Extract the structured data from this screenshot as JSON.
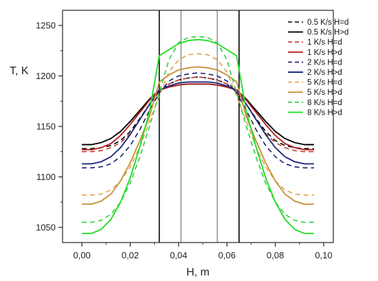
{
  "chart_data": {
    "type": "line",
    "xlabel": "H, m",
    "ylabel": "T, K",
    "xlim": [
      -0.008,
      0.104
    ],
    "ylim": [
      1035,
      1265
    ],
    "xticks": [
      0.0,
      0.02,
      0.04,
      0.06,
      0.08,
      0.1
    ],
    "xtick_labels": [
      "0,00",
      "0,02",
      "0,04",
      "0,06",
      "0,08",
      "0,10"
    ],
    "yticks": [
      1050,
      1100,
      1150,
      1200,
      1250
    ],
    "ytick_labels": [
      "1050",
      "1100",
      "1150",
      "1200",
      "1250"
    ],
    "grid": false,
    "legend_position": "top-right",
    "vertical_lines": [
      {
        "x": 0.032,
        "color": "#000000"
      },
      {
        "x": 0.041,
        "color": "#808080"
      },
      {
        "x": 0.056,
        "color": "#808080"
      },
      {
        "x": 0.065,
        "color": "#000000"
      }
    ],
    "series": [
      {
        "name": "0.5 K/s H=d",
        "color": "#000000",
        "dash": true,
        "x": [
          0.0,
          0.004,
          0.008,
          0.012,
          0.016,
          0.02,
          0.024,
          0.028,
          0.032,
          0.036,
          0.04,
          0.044,
          0.048,
          0.052,
          0.056,
          0.06,
          0.064,
          0.068,
          0.072,
          0.076,
          0.08,
          0.084,
          0.088,
          0.092,
          0.096
        ],
        "y": [
          1128,
          1128,
          1129,
          1131,
          1136,
          1145,
          1158,
          1172,
          1184,
          1192,
          1196,
          1198,
          1199,
          1198,
          1196,
          1192,
          1184,
          1172,
          1158,
          1145,
          1136,
          1131,
          1129,
          1128,
          1128
        ]
      },
      {
        "name": "0.5 K/s H>d",
        "color": "#000000",
        "dash": false,
        "x": [
          0.0,
          0.004,
          0.008,
          0.012,
          0.016,
          0.02,
          0.024,
          0.028,
          0.032,
          0.036,
          0.04,
          0.044,
          0.048,
          0.052,
          0.056,
          0.06,
          0.064,
          0.068,
          0.072,
          0.076,
          0.08,
          0.084,
          0.088,
          0.092,
          0.096
        ],
        "y": [
          1132,
          1132,
          1134,
          1138,
          1145,
          1155,
          1166,
          1177,
          1186,
          1189,
          1191,
          1192,
          1192,
          1192,
          1191,
          1189,
          1186,
          1177,
          1166,
          1155,
          1145,
          1138,
          1134,
          1132,
          1132
        ]
      },
      {
        "name": "1 K/s H=d",
        "color": "#c0392b",
        "dash": true,
        "x": [
          0.0,
          0.004,
          0.008,
          0.012,
          0.016,
          0.02,
          0.024,
          0.028,
          0.032,
          0.036,
          0.04,
          0.044,
          0.048,
          0.052,
          0.056,
          0.06,
          0.064,
          0.068,
          0.072,
          0.076,
          0.08,
          0.084,
          0.088,
          0.092,
          0.096
        ],
        "y": [
          1125,
          1125,
          1126,
          1129,
          1134,
          1143,
          1157,
          1172,
          1184,
          1192,
          1196,
          1198,
          1199,
          1198,
          1196,
          1192,
          1184,
          1172,
          1157,
          1143,
          1134,
          1129,
          1126,
          1125,
          1125
        ]
      },
      {
        "name": "1 K/s H>d",
        "color": "#b22222",
        "dash": false,
        "x": [
          0.0,
          0.004,
          0.008,
          0.012,
          0.016,
          0.02,
          0.024,
          0.028,
          0.032,
          0.036,
          0.04,
          0.044,
          0.048,
          0.052,
          0.056,
          0.06,
          0.064,
          0.068,
          0.072,
          0.076,
          0.08,
          0.084,
          0.088,
          0.092,
          0.096
        ],
        "y": [
          1127,
          1127,
          1129,
          1133,
          1141,
          1152,
          1164,
          1176,
          1186,
          1189,
          1191,
          1192,
          1192,
          1192,
          1191,
          1189,
          1186,
          1176,
          1164,
          1152,
          1141,
          1133,
          1129,
          1127,
          1127
        ]
      },
      {
        "name": "2 K/s H=d",
        "color": "#1a1a6e",
        "dash": true,
        "x": [
          0.0,
          0.004,
          0.008,
          0.012,
          0.016,
          0.02,
          0.024,
          0.028,
          0.032,
          0.036,
          0.04,
          0.044,
          0.048,
          0.052,
          0.056,
          0.06,
          0.064,
          0.068,
          0.072,
          0.076,
          0.08,
          0.084,
          0.088,
          0.092,
          0.096
        ],
        "y": [
          1109,
          1109,
          1110,
          1113,
          1120,
          1131,
          1147,
          1166,
          1183,
          1195,
          1200,
          1202,
          1203,
          1202,
          1200,
          1195,
          1183,
          1166,
          1147,
          1131,
          1120,
          1113,
          1110,
          1109,
          1109
        ]
      },
      {
        "name": "2 K/s H>d",
        "color": "#1f2a80",
        "dash": false,
        "x": [
          0.0,
          0.004,
          0.008,
          0.012,
          0.016,
          0.02,
          0.024,
          0.028,
          0.032,
          0.036,
          0.04,
          0.044,
          0.048,
          0.052,
          0.056,
          0.06,
          0.064,
          0.068,
          0.072,
          0.076,
          0.08,
          0.084,
          0.088,
          0.092,
          0.096
        ],
        "y": [
          1113,
          1113,
          1115,
          1120,
          1129,
          1142,
          1157,
          1172,
          1186,
          1190,
          1193,
          1194,
          1194,
          1194,
          1193,
          1190,
          1186,
          1172,
          1157,
          1142,
          1129,
          1120,
          1115,
          1113,
          1113
        ]
      },
      {
        "name": "5 K/s H=d",
        "color": "#e0a050",
        "dash": true,
        "x": [
          0.0,
          0.004,
          0.008,
          0.012,
          0.016,
          0.02,
          0.024,
          0.028,
          0.032,
          0.036,
          0.04,
          0.044,
          0.048,
          0.052,
          0.056,
          0.06,
          0.064,
          0.068,
          0.072,
          0.076,
          0.08,
          0.084,
          0.088,
          0.092,
          0.096
        ],
        "y": [
          1082,
          1082,
          1083,
          1087,
          1096,
          1110,
          1130,
          1155,
          1180,
          1204,
          1216,
          1221,
          1222,
          1221,
          1216,
          1204,
          1180,
          1155,
          1130,
          1110,
          1096,
          1087,
          1083,
          1082,
          1082
        ]
      },
      {
        "name": "5 K/s H>d",
        "color": "#c8923a",
        "dash": false,
        "x": [
          0.0,
          0.004,
          0.008,
          0.012,
          0.016,
          0.02,
          0.024,
          0.028,
          0.032,
          0.036,
          0.04,
          0.044,
          0.048,
          0.052,
          0.056,
          0.06,
          0.064,
          0.068,
          0.072,
          0.076,
          0.08,
          0.084,
          0.088,
          0.092,
          0.096
        ],
        "y": [
          1073,
          1073,
          1076,
          1083,
          1096,
          1114,
          1136,
          1160,
          1194,
          1201,
          1206,
          1208,
          1209,
          1208,
          1206,
          1201,
          1194,
          1160,
          1136,
          1114,
          1096,
          1083,
          1076,
          1073,
          1073
        ]
      },
      {
        "name": "8 K/s H=d",
        "color": "#2ecc40",
        "dash": true,
        "x": [
          0.0,
          0.004,
          0.008,
          0.012,
          0.016,
          0.02,
          0.024,
          0.028,
          0.032,
          0.036,
          0.04,
          0.044,
          0.048,
          0.052,
          0.056,
          0.06,
          0.064,
          0.068,
          0.072,
          0.076,
          0.08,
          0.084,
          0.088,
          0.092,
          0.096
        ],
        "y": [
          1055,
          1055,
          1057,
          1063,
          1075,
          1094,
          1120,
          1150,
          1183,
          1216,
          1233,
          1238,
          1239,
          1238,
          1233,
          1216,
          1183,
          1150,
          1120,
          1094,
          1075,
          1063,
          1057,
          1055,
          1055
        ]
      },
      {
        "name": "8 K/s H>d",
        "color": "#22dd22",
        "dash": false,
        "x": [
          0.0,
          0.004,
          0.008,
          0.012,
          0.016,
          0.02,
          0.024,
          0.028,
          0.032,
          0.036,
          0.04,
          0.044,
          0.048,
          0.052,
          0.056,
          0.06,
          0.064,
          0.068,
          0.072,
          0.076,
          0.08,
          0.084,
          0.088,
          0.092,
          0.096
        ],
        "y": [
          1044,
          1044,
          1048,
          1058,
          1075,
          1099,
          1130,
          1165,
          1220,
          1226,
          1232,
          1235,
          1236,
          1235,
          1232,
          1226,
          1220,
          1165,
          1130,
          1099,
          1075,
          1058,
          1048,
          1044,
          1044
        ]
      }
    ]
  }
}
